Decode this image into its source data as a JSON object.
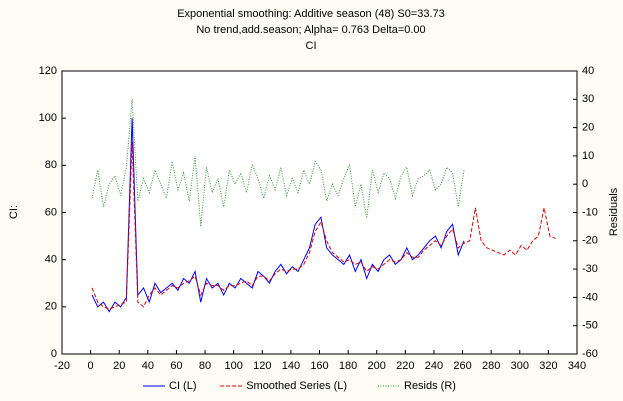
{
  "chart_data": {
    "type": "line",
    "title": "Exponential smoothing: Additive season (48) S0=33.73",
    "subtitle": "No trend,add.season; Alpha=  0.763 Delta=0.00",
    "variable": "CI",
    "y_label": "CI:",
    "y2_label": "Residuals",
    "x": [
      1,
      5,
      9,
      13,
      17,
      21,
      25,
      29,
      33,
      37,
      41,
      45,
      49,
      53,
      57,
      61,
      65,
      69,
      73,
      77,
      81,
      85,
      89,
      93,
      97,
      101,
      105,
      109,
      113,
      117,
      121,
      125,
      129,
      133,
      137,
      141,
      145,
      149,
      153,
      157,
      161,
      165,
      169,
      173,
      177,
      181,
      185,
      189,
      193,
      197,
      201,
      205,
      209,
      213,
      217,
      221,
      225,
      229,
      233,
      237,
      241,
      245,
      249,
      253,
      257,
      261,
      265,
      269,
      273,
      277,
      281,
      285,
      289,
      293,
      297,
      301,
      305,
      309,
      313,
      317,
      321,
      325
    ],
    "series": [
      {
        "name": "CI (L)",
        "color": "#0000ff",
        "dash": "none",
        "values": [
          25,
          20,
          22,
          18,
          22,
          20,
          24,
          100,
          25,
          28,
          22,
          30,
          26,
          28,
          30,
          27,
          32,
          30,
          35,
          22,
          32,
          28,
          30,
          25,
          30,
          28,
          32,
          30,
          28,
          35,
          33,
          30,
          35,
          38,
          34,
          37,
          35,
          40,
          45,
          55,
          58,
          45,
          42,
          40,
          38,
          42,
          35,
          40,
          32,
          38,
          35,
          40,
          42,
          38,
          40,
          45,
          40,
          42,
          45,
          48,
          50,
          45,
          52,
          55,
          42,
          48,
          null,
          null,
          null,
          null,
          null,
          null,
          null,
          null,
          null,
          null,
          null,
          null,
          null,
          null,
          null,
          null
        ]
      },
      {
        "name": "Smoothed Series (L)",
        "color": "#e00000",
        "dash": "4 2",
        "values": [
          28,
          22,
          20,
          19,
          20,
          21,
          22,
          90,
          22,
          20,
          25,
          28,
          25,
          27,
          29,
          28,
          30,
          31,
          33,
          25,
          30,
          29,
          29,
          27,
          29,
          29,
          30,
          31,
          29,
          33,
          33,
          31,
          34,
          36,
          35,
          36,
          36,
          38,
          43,
          52,
          56,
          48,
          43,
          41,
          39,
          40,
          38,
          39,
          35,
          37,
          36,
          38,
          40,
          39,
          40,
          43,
          41,
          41,
          44,
          46,
          48,
          46,
          50,
          53,
          45,
          47,
          48,
          62,
          48,
          45,
          44,
          43,
          42,
          44,
          42,
          46,
          44,
          48,
          50,
          62,
          50,
          49
        ]
      },
      {
        "name": "Resids (R)",
        "color": "#2e9a2e",
        "dash": "1 1.5",
        "axis": "y2",
        "values": [
          -5,
          5,
          -8,
          0,
          3,
          -4,
          6,
          30,
          -6,
          2,
          -3,
          5,
          0,
          -5,
          8,
          -2,
          4,
          -6,
          10,
          -15,
          6,
          -3,
          2,
          -8,
          5,
          0,
          4,
          -3,
          7,
          2,
          -5,
          3,
          -2,
          6,
          -4,
          2,
          -3,
          5,
          0,
          8,
          5,
          -6,
          0,
          -4,
          2,
          7,
          -8,
          0,
          -12,
          5,
          -3,
          4,
          2,
          -5,
          3,
          6,
          -4,
          2,
          3,
          5,
          -2,
          0,
          6,
          4,
          -8,
          5,
          null,
          null,
          null,
          null,
          null,
          null,
          null,
          null,
          null,
          null,
          null,
          null,
          null,
          null,
          null,
          null
        ]
      }
    ],
    "xlim": [
      -20,
      340
    ],
    "xticks": [
      -20,
      0,
      20,
      40,
      60,
      80,
      100,
      120,
      140,
      160,
      180,
      200,
      220,
      240,
      260,
      280,
      300,
      320,
      340
    ],
    "ylim": [
      0,
      120
    ],
    "yticks": [
      0,
      20,
      40,
      60,
      80,
      100,
      120
    ],
    "y2lim": [
      -60,
      40
    ],
    "y2ticks": [
      -60,
      -50,
      -40,
      -30,
      -20,
      -10,
      0,
      10,
      20,
      30,
      40
    ],
    "grid": false,
    "legend": "bottom"
  }
}
